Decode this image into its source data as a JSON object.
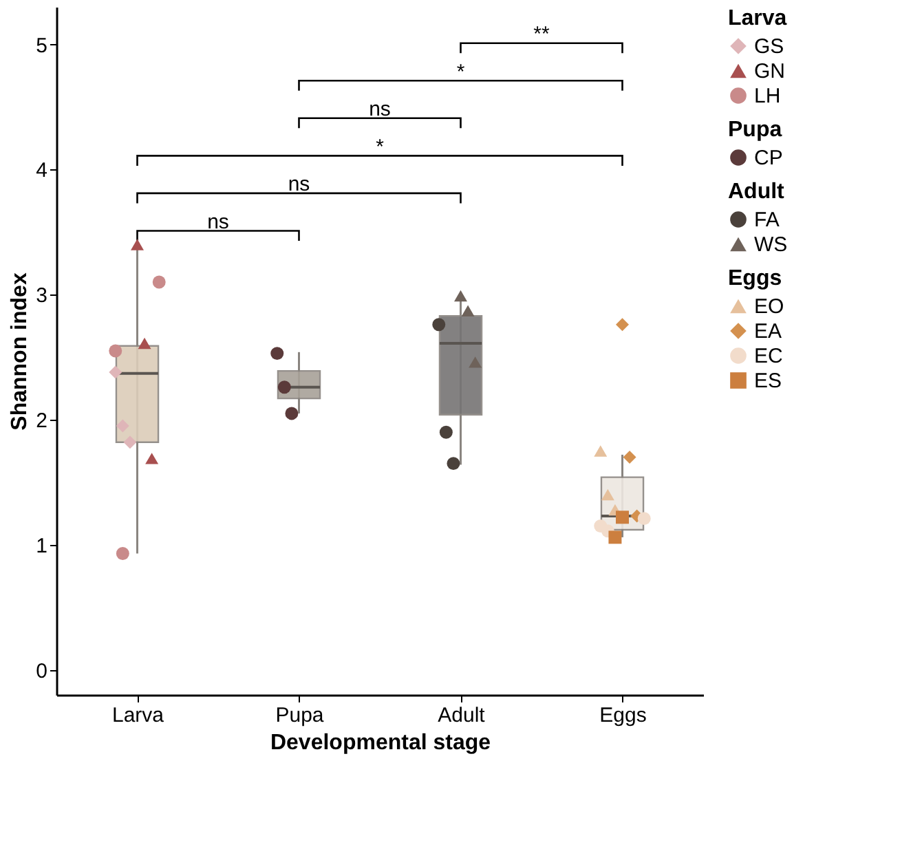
{
  "chart_data": {
    "type": "box",
    "xlabel": "Developmental stage",
    "ylabel": "Shannon index",
    "categories": [
      "Larva",
      "Pupa",
      "Adult",
      "Eggs"
    ],
    "boxes": [
      {
        "low": 0.93,
        "q1": 1.82,
        "median": 2.37,
        "q3": 2.59,
        "high": 3.4
      },
      {
        "low": 2.05,
        "q1": 2.17,
        "median": 2.26,
        "q3": 2.39,
        "high": 2.54
      },
      {
        "low": 1.64,
        "q1": 2.04,
        "median": 2.61,
        "q3": 2.83,
        "high": 2.97
      },
      {
        "low": 1.06,
        "q1": 1.12,
        "median": 1.23,
        "q3": 1.54,
        "high": 1.72
      }
    ],
    "colors": [
      "#dccdb9",
      "#a8a198",
      "#767474",
      "#ede7e1"
    ],
    "series": [
      {
        "name": "GS",
        "type": "scatter",
        "marker": "diamond",
        "color": "#dfb5b8",
        "x": [
          "Larva",
          "Larva",
          "Larva"
        ],
        "values": [
          2.38,
          1.95,
          1.82
        ]
      },
      {
        "name": "GN",
        "type": "scatter",
        "marker": "triangle",
        "color": "#a84f4f",
        "x": [
          "Larva",
          "Larva",
          "Larva"
        ],
        "values": [
          3.4,
          2.61,
          1.69
        ]
      },
      {
        "name": "LH",
        "type": "scatter",
        "marker": "circle",
        "color": "#c98a8a",
        "x": [
          "Larva",
          "Larva",
          "Larva"
        ],
        "values": [
          3.1,
          2.55,
          0.93
        ]
      },
      {
        "name": "CP",
        "type": "scatter",
        "marker": "circle",
        "color": "#5b3a3a",
        "x": [
          "Pupa",
          "Pupa",
          "Pupa"
        ],
        "values": [
          2.53,
          2.26,
          2.05
        ]
      },
      {
        "name": "FA",
        "type": "scatter",
        "marker": "circle",
        "color": "#4a413b",
        "x": [
          "Adult",
          "Adult",
          "Adult"
        ],
        "values": [
          2.76,
          1.9,
          1.65
        ]
      },
      {
        "name": "WS",
        "type": "scatter",
        "marker": "triangle",
        "color": "#6e625a",
        "x": [
          "Adult",
          "Adult",
          "Adult"
        ],
        "values": [
          2.99,
          2.87,
          2.46
        ]
      },
      {
        "name": "EO",
        "type": "scatter",
        "marker": "triangle",
        "color": "#e6c09c",
        "x": [
          "Eggs",
          "Eggs",
          "Eggs"
        ],
        "values": [
          1.75,
          1.4,
          1.28
        ]
      },
      {
        "name": "EA",
        "type": "scatter",
        "marker": "diamond",
        "color": "#d4914f",
        "x": [
          "Eggs",
          "Eggs",
          "Eggs"
        ],
        "values": [
          2.76,
          1.7,
          1.23
        ]
      },
      {
        "name": "EC",
        "type": "scatter",
        "marker": "circle",
        "color": "#f2dccb",
        "x": [
          "Eggs",
          "Eggs",
          "Eggs"
        ],
        "values": [
          1.21,
          1.15,
          1.11
        ]
      },
      {
        "name": "ES",
        "type": "scatter",
        "marker": "square",
        "color": "#cc7f3f",
        "x": [
          "Eggs",
          "Eggs"
        ],
        "values": [
          1.06,
          1.22
        ]
      }
    ],
    "ylim": [
      -0.2,
      5.3
    ],
    "yticks": [
      0,
      1,
      2,
      3,
      4,
      5
    ],
    "annotations": [
      "ns",
      "ns",
      "*",
      "ns",
      "*",
      "**"
    ],
    "grid": false,
    "legend": "right"
  }
}
